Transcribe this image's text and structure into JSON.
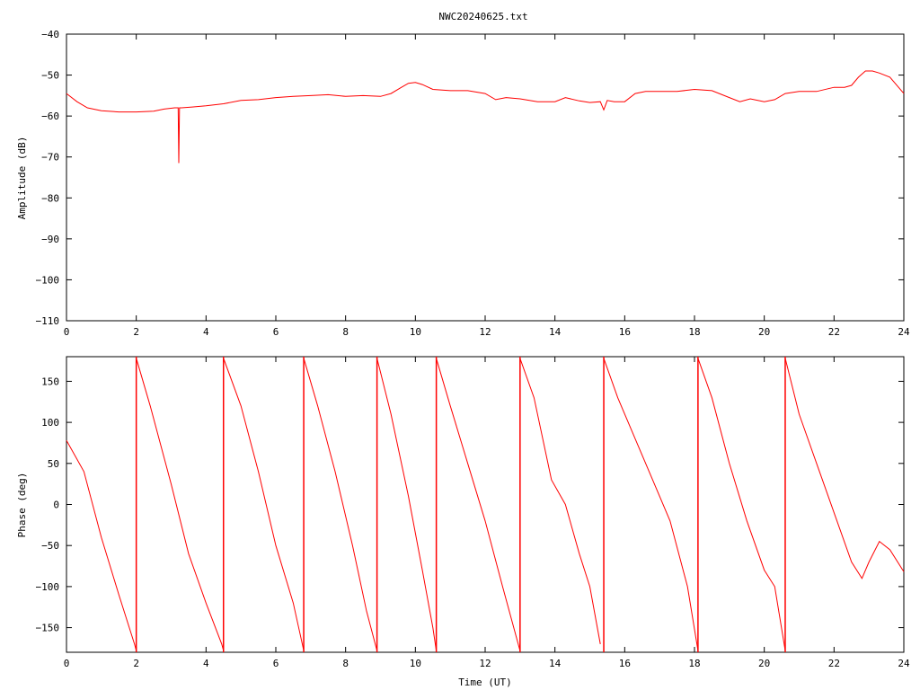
{
  "title": "NWC20240625.txt",
  "colors": {
    "series": "#ff0000",
    "axes": "#000000",
    "background": "#ffffff"
  },
  "chart_data": [
    {
      "type": "line",
      "title": "NWC20240625.txt",
      "xlabel": "",
      "ylabel": "Amplitude (dB)",
      "xlim": [
        0,
        24
      ],
      "ylim": [
        -110,
        -40
      ],
      "xticks": [
        "0",
        "2",
        "4",
        "6",
        "8",
        "10",
        "12",
        "14",
        "16",
        "18",
        "20",
        "22",
        "24"
      ],
      "yticks": [
        "-40",
        "-50",
        "-60",
        "-70",
        "-80",
        "-90",
        "-100",
        "-110"
      ],
      "grid": false,
      "series": [
        {
          "x": [
            0,
            0.3,
            0.6,
            1.0,
            1.5,
            2.0,
            2.5,
            2.8,
            3.1,
            3.2,
            3.22,
            3.24,
            3.26,
            3.3,
            3.6,
            4.0,
            4.5,
            5.0,
            5.5,
            6.0,
            6.5,
            7.0,
            7.5,
            8.0,
            8.5,
            9.0,
            9.3,
            9.6,
            9.8,
            10.0,
            10.2,
            10.5,
            11.0,
            11.5,
            12.0,
            12.3,
            12.6,
            13.0,
            13.5,
            14.0,
            14.3,
            14.7,
            15.0,
            15.3,
            15.4,
            15.5,
            15.7,
            16.0,
            16.3,
            16.6,
            17.0,
            17.5,
            18.0,
            18.5,
            19.0,
            19.3,
            19.6,
            20.0,
            20.3,
            20.6,
            21.0,
            21.5,
            22.0,
            22.3,
            22.5,
            22.7,
            22.9,
            23.1,
            23.3,
            23.6,
            24.0
          ],
          "y": [
            -54.5,
            -56.5,
            -58,
            -58.7,
            -59,
            -59,
            -58.8,
            -58.3,
            -58,
            -58,
            -71.5,
            -58,
            -58,
            -58,
            -57.8,
            -57.5,
            -57,
            -56.2,
            -56,
            -55.5,
            -55.2,
            -55,
            -54.8,
            -55.2,
            -55,
            -55.2,
            -54.5,
            -53,
            -52,
            -51.8,
            -52.3,
            -53.5,
            -53.8,
            -53.8,
            -54.5,
            -56,
            -55.5,
            -55.8,
            -56.5,
            -56.5,
            -55.5,
            -56.3,
            -56.7,
            -56.5,
            -58.5,
            -56.2,
            -56.5,
            -56.5,
            -54.5,
            -54,
            -54,
            -54,
            -53.5,
            -53.8,
            -55.5,
            -56.5,
            -55.8,
            -56.5,
            -56,
            -54.5,
            -54,
            -54,
            -53,
            -53,
            -52.5,
            -50.5,
            -49,
            -49,
            -49.5,
            -50.5,
            -54.5
          ]
        }
      ]
    },
    {
      "type": "line",
      "title": "",
      "xlabel": "Time (UT)",
      "ylabel": "Phase (deg)",
      "xlim": [
        0,
        24
      ],
      "ylim": [
        -180,
        180
      ],
      "xticks": [
        "0",
        "2",
        "4",
        "6",
        "8",
        "10",
        "12",
        "14",
        "16",
        "18",
        "20",
        "22",
        "24"
      ],
      "yticks": [
        "150",
        "100",
        "50",
        "0",
        "-50",
        "-100",
        "-150"
      ],
      "grid": false,
      "series": [
        {
          "segments": [
            {
              "x": [
                0,
                0.5,
                1.0,
                1.5,
                1.95,
                2.0
              ],
              "y": [
                78,
                40,
                -40,
                -110,
                -170,
                -178
              ]
            },
            {
              "x": [
                2.0,
                2.4,
                3.0,
                3.5,
                4.0,
                4.45,
                4.5
              ],
              "y": [
                178,
                120,
                25,
                -60,
                -120,
                -170,
                -178
              ]
            },
            {
              "x": [
                4.5,
                5.0,
                5.5,
                6.0,
                6.5,
                6.8
              ],
              "y": [
                178,
                120,
                40,
                -50,
                -120,
                -178
              ]
            },
            {
              "x": [
                6.8,
                7.2,
                7.7,
                8.2,
                8.6,
                8.9
              ],
              "y": [
                178,
                120,
                40,
                -50,
                -130,
                -178
              ]
            },
            {
              "x": [
                8.9,
                9.3,
                9.8,
                10.2,
                10.5,
                10.6
              ],
              "y": [
                178,
                110,
                10,
                -80,
                -150,
                -178
              ]
            },
            {
              "x": [
                10.6,
                11.0,
                11.5,
                12.0,
                12.5,
                13.0
              ],
              "y": [
                178,
                120,
                50,
                -20,
                -100,
                -178
              ]
            },
            {
              "x": [
                13.0,
                13.4,
                13.9,
                14.3,
                14.7,
                15.0,
                15.3
              ],
              "y": [
                178,
                130,
                30,
                0,
                -60,
                -100,
                -170
              ]
            },
            {
              "x": [
                15.4,
                15.8,
                16.3,
                16.8,
                17.3,
                17.8,
                18.1
              ],
              "y": [
                178,
                130,
                80,
                30,
                -20,
                -100,
                -178
              ]
            },
            {
              "x": [
                18.1,
                18.5,
                19.0,
                19.5,
                20.0,
                20.3,
                20.6
              ],
              "y": [
                178,
                130,
                50,
                -20,
                -80,
                -100,
                -178
              ]
            },
            {
              "x": [
                20.6,
                21.0,
                21.5,
                22.0,
                22.5,
                22.8,
                23.0,
                23.3,
                23.6,
                24.0
              ],
              "y": [
                178,
                110,
                50,
                -10,
                -70,
                -90,
                -70,
                -45,
                -55,
                -82
              ]
            }
          ]
        }
      ]
    }
  ]
}
